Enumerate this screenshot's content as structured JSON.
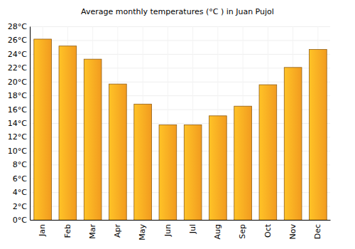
{
  "chart_data": {
    "type": "bar",
    "title": "Average monthly temperatures (°C ) in Juan Pujol",
    "categories": [
      "Jan",
      "Feb",
      "Mar",
      "Apr",
      "May",
      "Jun",
      "Jul",
      "Aug",
      "Sep",
      "Oct",
      "Nov",
      "Dec"
    ],
    "values": [
      26.2,
      25.2,
      23.3,
      19.7,
      16.8,
      13.8,
      13.8,
      15.1,
      16.5,
      19.6,
      22.1,
      24.7
    ],
    "color": "#ffa321",
    "ylim": [
      0,
      28
    ],
    "yticks": [
      {
        "value": 0,
        "label": "0°C"
      },
      {
        "value": 2,
        "label": "2°C"
      },
      {
        "value": 4,
        "label": "4°C"
      },
      {
        "value": 6,
        "label": "6°C"
      },
      {
        "value": 8,
        "label": "8°C"
      },
      {
        "value": 10,
        "label": "10°C"
      },
      {
        "value": 12,
        "label": "12°C"
      },
      {
        "value": 14,
        "label": "14°C"
      },
      {
        "value": 16,
        "label": "16°C"
      },
      {
        "value": 18,
        "label": "18°C"
      },
      {
        "value": 20,
        "label": "20°C"
      },
      {
        "value": 22,
        "label": "22°C"
      },
      {
        "value": 24,
        "label": "24°C"
      },
      {
        "value": 26,
        "label": "26°C"
      },
      {
        "value": 28,
        "label": "28°C"
      }
    ],
    "grid": true
  }
}
